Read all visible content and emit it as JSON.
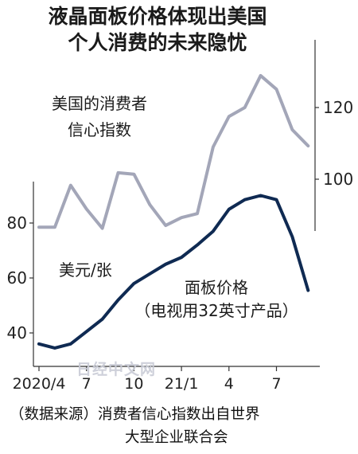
{
  "title": [
    "液晶面板价格体现出美国",
    "个人消费的未来隐忧"
  ],
  "source": [
    "（数据来源）消费者信心指数出自世界",
    "大型企业联合会"
  ],
  "watermark": "日经中文网",
  "colors": {
    "confidence": "#a3a6b8",
    "panel": "#0f2a52",
    "axis": "#333333"
  },
  "chart_data": {
    "type": "line",
    "x": [
      "2020/4",
      "2020/5",
      "2020/6",
      "2020/7",
      "2020/8",
      "2020/9",
      "2020/10",
      "2020/11",
      "2020/12",
      "2021/1",
      "2021/2",
      "2021/3",
      "2021/4",
      "2021/5",
      "2021/6",
      "2021/7",
      "2021/8",
      "2021/9"
    ],
    "xticks": [
      {
        "index": 0,
        "label": "2020/4"
      },
      {
        "index": 3,
        "label": "7"
      },
      {
        "index": 6,
        "label": "10"
      },
      {
        "index": 9,
        "label": "21/1"
      },
      {
        "index": 12,
        "label": "4"
      },
      {
        "index": 15,
        "label": "7"
      }
    ],
    "series": [
      {
        "name": "美国的消费者信心指数",
        "label_lines": [
          "美国的消费者",
          "信心指数"
        ],
        "axis": "right",
        "values": [
          86.6,
          86.6,
          98.3,
          91.7,
          86.3,
          101.8,
          101.4,
          92.9,
          87.1,
          89.3,
          90.4,
          109.0,
          117.5,
          120.0,
          128.9,
          125.1,
          113.8,
          109.3
        ]
      },
      {
        "name": "面板价格（电视用32英寸产品）",
        "label_lines": [
          "面板价格",
          "（电视用32英寸产品）"
        ],
        "unit": "美元/张",
        "axis": "left",
        "values": [
          36,
          34.5,
          36,
          40.5,
          45,
          52,
          58,
          61.5,
          65,
          67.5,
          72,
          77,
          85,
          88.5,
          90,
          88.5,
          75,
          55.5
        ]
      }
    ],
    "left_axis": {
      "ticks": [
        40,
        60,
        80
      ],
      "range": [
        30,
        95
      ]
    },
    "right_axis": {
      "ticks": [
        100,
        120
      ],
      "range": [
        75,
        133
      ]
    },
    "legend": "inline labels"
  }
}
